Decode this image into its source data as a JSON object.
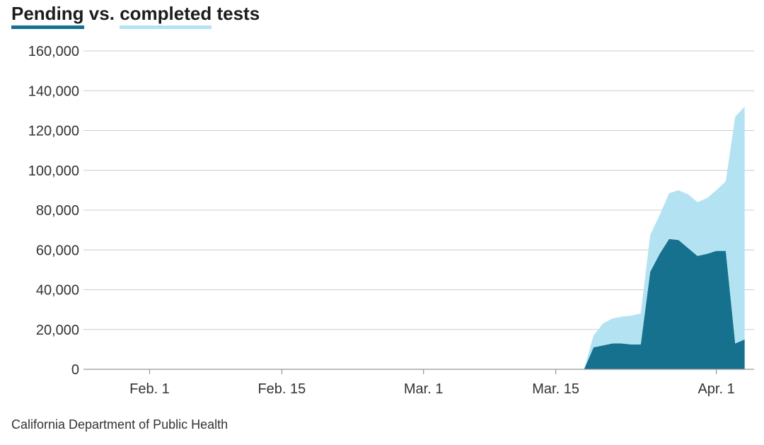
{
  "title": {
    "series_a": "Pending",
    "connector": "vs.",
    "series_b": "completed",
    "suffix": "tests"
  },
  "source": "California Department of Public Health",
  "colors": {
    "pending": "#15718e",
    "completed": "#b3e3f2",
    "grid": "#cccccc",
    "axis": "#999999"
  },
  "chart_data": {
    "type": "area",
    "stacked": true,
    "title": "Pending vs. completed tests",
    "xlabel": "",
    "ylabel": "",
    "ylim": [
      0,
      160000
    ],
    "grid": true,
    "y_ticks": [
      {
        "value": 0,
        "label": "0"
      },
      {
        "value": 20000,
        "label": "20,000"
      },
      {
        "value": 40000,
        "label": "40,000"
      },
      {
        "value": 60000,
        "label": "60,000"
      },
      {
        "value": 80000,
        "label": "80,000"
      },
      {
        "value": 100000,
        "label": "100,000"
      },
      {
        "value": 120000,
        "label": "120,000"
      },
      {
        "value": 140000,
        "label": "140,000"
      },
      {
        "value": 160000,
        "label": "160,000"
      }
    ],
    "x_ticks": [
      {
        "date": "2020-02-01",
        "label": "Feb. 1"
      },
      {
        "date": "2020-02-15",
        "label": "Feb. 15"
      },
      {
        "date": "2020-03-01",
        "label": "Mar. 1"
      },
      {
        "date": "2020-03-15",
        "label": "Mar. 15"
      },
      {
        "date": "2020-04-01",
        "label": "Apr. 1"
      }
    ],
    "xlim": [
      "2020-01-25",
      "2020-04-05"
    ],
    "x": [
      "2020-03-18",
      "2020-03-19",
      "2020-03-20",
      "2020-03-21",
      "2020-03-22",
      "2020-03-23",
      "2020-03-24",
      "2020-03-25",
      "2020-03-26",
      "2020-03-27",
      "2020-03-28",
      "2020-03-29",
      "2020-03-30",
      "2020-03-31",
      "2020-04-01",
      "2020-04-02",
      "2020-04-03",
      "2020-04-04"
    ],
    "series": [
      {
        "name": "Pending",
        "values": [
          0,
          11000,
          12000,
          13000,
          13000,
          12500,
          12500,
          49000,
          58000,
          65500,
          65000,
          61000,
          57000,
          58000,
          59500,
          59500,
          13000,
          15000
        ]
      },
      {
        "name": "completed",
        "values": [
          0,
          6000,
          11000,
          12500,
          13500,
          14500,
          15500,
          18500,
          19500,
          23000,
          25000,
          27000,
          27000,
          28000,
          30500,
          35000,
          114000,
          117000
        ]
      }
    ]
  }
}
